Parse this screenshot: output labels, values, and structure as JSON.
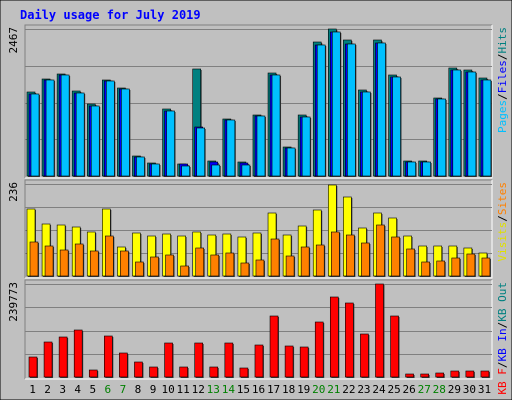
{
  "chart_data": {
    "type": "bar",
    "title": "Daily usage for July 2019",
    "categories": [
      "1",
      "2",
      "3",
      "4",
      "5",
      "6",
      "7",
      "8",
      "9",
      "10",
      "11",
      "12",
      "13",
      "14",
      "15",
      "16",
      "17",
      "18",
      "19",
      "20",
      "21",
      "22",
      "23",
      "24",
      "25",
      "26",
      "27",
      "28",
      "29",
      "30",
      "31"
    ],
    "weekend_days": [
      "6",
      "7",
      "13",
      "14",
      "20",
      "21",
      "27",
      "28"
    ],
    "panels": [
      {
        "name": "pages-files-hits",
        "ymax_label": "2467",
        "ymax": 2467,
        "right_labels": [
          {
            "text": "Pages",
            "color": "#00c0ff"
          },
          {
            "text": "/",
            "color": "#000000"
          },
          {
            "text": "Files",
            "color": "#0000ff"
          },
          {
            "text": "/",
            "color": "#000000"
          },
          {
            "text": "Hits",
            "color": "#008080"
          }
        ],
        "series": [
          {
            "name": "Hits",
            "color": "#008080",
            "values": [
              1412,
              1636,
              1719,
              1421,
              1200,
              1618,
              1480,
              338,
              215,
              1119,
              209,
              1793,
              245,
              957,
              229,
              1022,
              1732,
              491,
              1017,
              2249,
              2467,
              2280,
              1436,
              2289,
              1692,
              259,
              253,
              1316,
              1812,
              1780,
              1648
            ]
          },
          {
            "name": "Files",
            "color": "#0000ff",
            "values": [
              1381,
              1604,
              1688,
              1391,
              1170,
              1588,
              1452,
              319,
              200,
              1096,
              195,
              830,
              233,
              935,
              215,
              1001,
              1699,
              473,
              995,
              2201,
              2411,
              2216,
              1414,
              2240,
              1660,
              241,
              241,
              1286,
              1775,
              1740,
              1608
            ]
          },
          {
            "name": "Pages",
            "color": "#00c0ff",
            "values": [
              1381,
              1604,
              1688,
              1391,
              1170,
              1588,
              1452,
              319,
              200,
              1096,
              167,
              806,
              184,
              935,
              183,
              1001,
              1699,
              473,
              995,
              2201,
              2411,
              2216,
              1414,
              2240,
              1660,
              241,
              241,
              1286,
              1775,
              1740,
              1608
            ]
          }
        ]
      },
      {
        "name": "visits-sites",
        "ymax_label": "236",
        "ymax": 236,
        "right_labels": [
          {
            "text": "Visits",
            "color": "#e0e000"
          },
          {
            "text": "/",
            "color": "#000000"
          },
          {
            "text": "Sites",
            "color": "#ff8000"
          }
        ],
        "series": [
          {
            "name": "Visits",
            "color": "#ffff00",
            "values": [
              172,
              134,
              132,
              126,
              113,
              172,
              74,
              111,
              103,
              108,
              103,
              114,
              104,
              109,
              100,
              110,
              162,
              105,
              128,
              170,
              233,
              203,
              124,
              161,
              148,
              102,
              78,
              76,
              76,
              72,
              60
            ]
          },
          {
            "name": "Sites",
            "color": "#ff8000",
            "values": [
              86,
              78,
              66,
              82,
              64,
              102,
              63,
              37,
              50,
              54,
              25,
              71,
              55,
              58,
              34,
              42,
              94,
              52,
              74,
              80,
              114,
              106,
              84,
              130,
              100,
              69,
              35,
              38,
              46,
              57,
              47
            ]
          }
        ]
      },
      {
        "name": "kbytes",
        "ymax_label": "239773",
        "ymax": 239773,
        "right_labels": [
          {
            "text": "KB F",
            "color": "#ff0000"
          },
          {
            "text": "/",
            "color": "#000000"
          },
          {
            "text": "KB In",
            "color": "#0000ff"
          },
          {
            "text": "/",
            "color": "#000000"
          },
          {
            "text": "KB Out",
            "color": "#008080"
          }
        ],
        "series": [
          {
            "name": "KB F",
            "color": "#ff0000",
            "values": [
              51000,
              89000,
              102000,
              122000,
              18000,
              106000,
              61000,
              39000,
              25000,
              88000,
              26000,
              87000,
              25000,
              87000,
              24000,
              82000,
              157000,
              79000,
              78000,
              141000,
              206000,
              190000,
              112000,
              240000,
              157000,
              8000,
              8000,
              10000,
              16000,
              16000,
              15000
            ]
          }
        ]
      }
    ]
  }
}
